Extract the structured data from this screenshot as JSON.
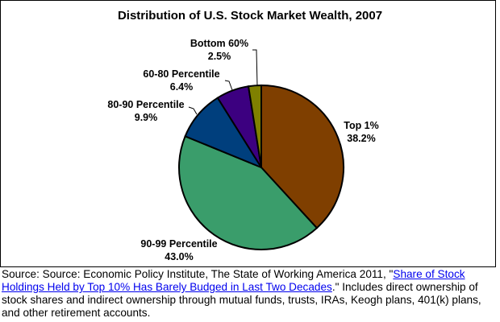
{
  "chart_data": {
    "type": "pie",
    "title": "Distribution of U.S. Stock Market Wealth, 2007",
    "slices": [
      {
        "label": "Top 1%",
        "value": 38.2,
        "display": "38.2%",
        "color": "#7f3f00"
      },
      {
        "label": "90-99 Percentile",
        "value": 43.0,
        "display": "43.0%",
        "color": "#3a9d6b"
      },
      {
        "label": "80-90 Percentile",
        "value": 9.9,
        "display": "9.9%",
        "color": "#003f7d"
      },
      {
        "label": "60-80 Percentile",
        "value": 6.4,
        "display": "6.4%",
        "color": "#3c0080"
      },
      {
        "label": "Bottom 60%",
        "value": 2.5,
        "display": "2.5%",
        "color": "#7f8000"
      }
    ],
    "start_angle": "12 o'clock",
    "direction": "clockwise",
    "legend": "none"
  },
  "source": {
    "prefix": "Source: Source: Economic Policy Institute, The State of Working America 2011, \"",
    "link_text": "Share of Stock Holdings Held by Top 10% Has Barely Budged in Last Two Decades",
    "suffix": ".\" Includes direct ownership of stock shares and indirect ownership through mutual funds, trusts, IRAs, Keogh plans, 401(k) plans, and other retirement accounts."
  }
}
